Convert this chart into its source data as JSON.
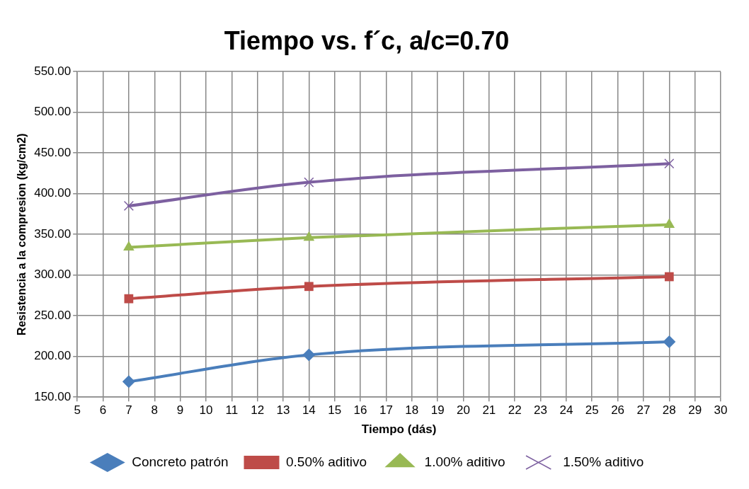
{
  "chart_data": {
    "type": "line",
    "title": "Tiempo vs. f´c, a/c=0.70",
    "xlabel": "Tiempo (dás)",
    "ylabel": "Resistencia a la compresion (kg/cm2)",
    "x": [
      7,
      14,
      28
    ],
    "series": [
      {
        "name": "Concreto patrón",
        "color": "#4a7ebb",
        "marker": "diamond",
        "values": [
          169,
          202,
          218
        ]
      },
      {
        "name": "0.50% aditivo",
        "color": "#be4b48",
        "marker": "square",
        "values": [
          271,
          286,
          298
        ]
      },
      {
        "name": "1.00% aditivo",
        "color": "#98b954",
        "marker": "triangle",
        "values": [
          334,
          346,
          362
        ]
      },
      {
        "name": "1.50% aditivo",
        "color": "#7d60a0",
        "marker": "cross",
        "values": [
          385,
          414,
          437
        ]
      }
    ],
    "xlim": [
      5,
      30
    ],
    "xticks": [
      5,
      6,
      7,
      8,
      9,
      10,
      11,
      12,
      13,
      14,
      15,
      16,
      17,
      18,
      19,
      20,
      21,
      22,
      23,
      24,
      25,
      26,
      27,
      28,
      29,
      30
    ],
    "ylim": [
      150,
      550
    ],
    "yticks": [
      {
        "value": 150,
        "label": "150.00"
      },
      {
        "value": 200,
        "label": "200.00"
      },
      {
        "value": 250,
        "label": "250.00"
      },
      {
        "value": 300,
        "label": "300.00"
      },
      {
        "value": 350,
        "label": "350.00"
      },
      {
        "value": 400,
        "label": "400.00"
      },
      {
        "value": 450,
        "label": "450.00"
      },
      {
        "value": 500,
        "label": "500.00"
      },
      {
        "value": 550,
        "label": "550.00"
      }
    ],
    "grid": true,
    "legend": "bottom",
    "line_style": "solid"
  }
}
